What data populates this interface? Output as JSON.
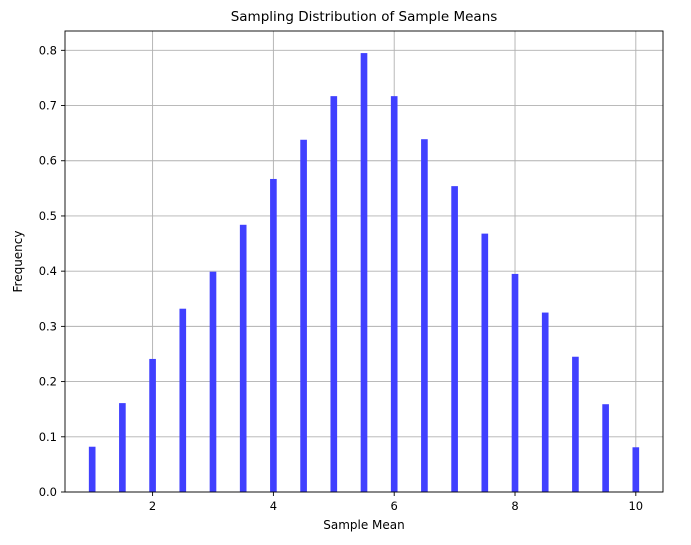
{
  "chart_data": {
    "type": "bar",
    "title": "Sampling Distribution of Sample Means",
    "xlabel": "Sample Mean",
    "ylabel": "Frequency",
    "xlim": [
      0.55,
      10.45
    ],
    "ylim": [
      0,
      0.835
    ],
    "xticks": [
      2,
      4,
      6,
      8,
      10
    ],
    "yticks": [
      0.0,
      0.1,
      0.2,
      0.3,
      0.4,
      0.5,
      0.6,
      0.7,
      0.8
    ],
    "xtick_labels": [
      "2",
      "4",
      "6",
      "8",
      "10"
    ],
    "ytick_labels": [
      "0.0",
      "0.1",
      "0.2",
      "0.3",
      "0.4",
      "0.5",
      "0.6",
      "0.7",
      "0.8"
    ],
    "grid": true,
    "bar_width": 0.11,
    "bar_color": "#4040ff",
    "x": [
      1.0,
      1.5,
      2.0,
      2.5,
      3.0,
      3.5,
      4.0,
      4.5,
      5.0,
      5.5,
      6.0,
      6.5,
      7.0,
      7.5,
      8.0,
      8.5,
      9.0,
      9.5,
      10.0
    ],
    "values": [
      0.082,
      0.161,
      0.241,
      0.332,
      0.399,
      0.484,
      0.567,
      0.638,
      0.717,
      0.795,
      0.717,
      0.639,
      0.554,
      0.468,
      0.395,
      0.325,
      0.245,
      0.159,
      0.081
    ]
  }
}
